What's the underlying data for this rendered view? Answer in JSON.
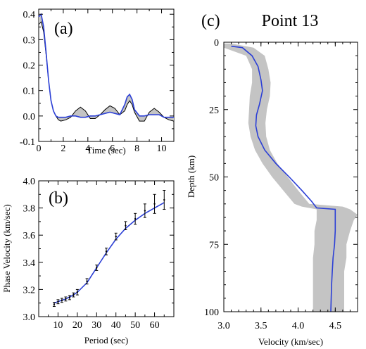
{
  "colors": {
    "model": "#2b3fd6",
    "band": "#c4c4c4",
    "axis": "#000000"
  },
  "chart_data": [
    {
      "id": "a",
      "type": "line",
      "panel_label": "(a)",
      "xlabel": "Time (sec)",
      "ylabel": "",
      "xlim": [
        0,
        11
      ],
      "ylim": [
        -0.1,
        0.42
      ],
      "xticks": [
        0,
        2,
        4,
        6,
        8,
        10
      ],
      "yticks": [
        -0.1,
        0.0,
        0.1,
        0.2,
        0.3,
        0.4
      ],
      "ytick_labels": [
        "-0.1",
        "0.0",
        "0.1",
        "0.2",
        "0.3",
        "0.4"
      ],
      "series": [
        {
          "role": "observed",
          "x": [
            0,
            0.2,
            0.4,
            0.6,
            0.8,
            1.0,
            1.2,
            1.4,
            1.6,
            1.8,
            2.2,
            2.6,
            3.0,
            3.4,
            3.8,
            4.2,
            4.6,
            5.0,
            5.4,
            5.8,
            6.2,
            6.6,
            7.0,
            7.2,
            7.4,
            7.6,
            7.8,
            8.2,
            8.6,
            9.0,
            9.4,
            9.8,
            10.2,
            10.6,
            11.0
          ],
          "y": [
            0.36,
            0.37,
            0.33,
            0.24,
            0.14,
            0.06,
            0.02,
            0.0,
            -0.015,
            -0.02,
            -0.015,
            -0.005,
            0.02,
            0.035,
            0.02,
            -0.01,
            -0.01,
            0.005,
            0.025,
            0.04,
            0.03,
            0.005,
            0.02,
            0.045,
            0.06,
            0.045,
            0.015,
            -0.02,
            -0.02,
            0.015,
            0.03,
            0.015,
            -0.005,
            -0.015,
            -0.02
          ]
        },
        {
          "role": "synthetic",
          "x": [
            0,
            0.2,
            0.4,
            0.6,
            0.8,
            1.0,
            1.2,
            1.4,
            1.6,
            1.8,
            2.2,
            2.6,
            3.0,
            3.4,
            3.8,
            4.2,
            4.6,
            5.0,
            5.4,
            5.8,
            6.2,
            6.6,
            7.0,
            7.2,
            7.4,
            7.6,
            7.8,
            8.2,
            8.6,
            9.0,
            9.4,
            9.8,
            10.2,
            10.6,
            11.0
          ],
          "y": [
            0.39,
            0.4,
            0.35,
            0.25,
            0.14,
            0.06,
            0.02,
            0.0,
            -0.005,
            -0.005,
            -0.005,
            0.0,
            0.0,
            -0.005,
            -0.005,
            0.0,
            0.0,
            0.005,
            0.01,
            0.015,
            0.01,
            0.005,
            0.045,
            0.075,
            0.085,
            0.065,
            0.025,
            0.0,
            0.0,
            0.005,
            0.005,
            0.005,
            -0.005,
            -0.005,
            -0.005
          ]
        }
      ]
    },
    {
      "id": "b",
      "type": "line",
      "panel_label": "(b)",
      "xlabel": "Period (sec)",
      "ylabel": "Phase Velocity (km/sec)",
      "xlim": [
        0,
        70
      ],
      "ylim": [
        3.0,
        4.0
      ],
      "xticks": [
        0,
        10,
        20,
        30,
        40,
        50,
        60,
        70
      ],
      "yticks": [
        3.0,
        3.2,
        3.4,
        3.6,
        3.8,
        4.0
      ],
      "ytick_labels": [
        "3.0",
        "3.2",
        "3.4",
        "3.6",
        "3.8",
        "4.0"
      ],
      "observed": {
        "x": [
          8,
          10,
          12,
          14,
          16,
          18,
          20,
          25,
          30,
          35,
          40,
          45,
          50,
          55,
          60,
          65
        ],
        "y": [
          3.09,
          3.11,
          3.12,
          3.13,
          3.14,
          3.16,
          3.18,
          3.26,
          3.36,
          3.48,
          3.59,
          3.67,
          3.72,
          3.78,
          3.83,
          3.86
        ],
        "err": [
          0.015,
          0.015,
          0.015,
          0.015,
          0.015,
          0.015,
          0.02,
          0.02,
          0.02,
          0.025,
          0.025,
          0.03,
          0.04,
          0.05,
          0.07,
          0.07
        ]
      },
      "model": {
        "x": [
          8,
          10,
          12,
          14,
          16,
          18,
          20,
          25,
          30,
          35,
          40,
          45,
          50,
          55,
          60,
          65
        ],
        "y": [
          3.1,
          3.11,
          3.12,
          3.13,
          3.145,
          3.16,
          3.18,
          3.25,
          3.36,
          3.47,
          3.57,
          3.65,
          3.71,
          3.76,
          3.8,
          3.84
        ]
      }
    },
    {
      "id": "c",
      "type": "line",
      "panel_label": "(c)",
      "title": "Point 13",
      "xlabel": "Velocity (km/sec)",
      "ylabel": "Depth (km)",
      "xlim": [
        3.0,
        4.8
      ],
      "ylim": [
        0,
        100
      ],
      "y_inverted": true,
      "xticks": [
        3.0,
        3.5,
        4.0,
        4.5
      ],
      "xtick_labels": [
        "3.0",
        "3.5",
        "4.0",
        "4.5"
      ],
      "yticks": [
        0,
        25,
        50,
        75,
        100
      ],
      "model": {
        "velocity": [
          3.1,
          3.25,
          3.38,
          3.46,
          3.5,
          3.52,
          3.48,
          3.44,
          3.43,
          3.46,
          3.55,
          3.7,
          3.88,
          4.05,
          4.18,
          4.25,
          4.5,
          4.5,
          4.5,
          4.49,
          4.47,
          4.46,
          4.45,
          4.44
        ],
        "depth": [
          1.5,
          2,
          5,
          9,
          14,
          18,
          23,
          27,
          31,
          35,
          40,
          45,
          50,
          55,
          59,
          61.5,
          62,
          65,
          70,
          75,
          80,
          85,
          90,
          100
        ]
      },
      "band": {
        "depth": [
          0.5,
          2,
          5,
          10,
          15,
          20,
          25,
          30,
          35,
          40,
          45,
          50,
          55,
          60,
          61,
          62,
          64,
          66,
          70,
          75,
          80,
          85,
          90,
          95,
          100
        ],
        "vmin": [
          3.0,
          3.0,
          3.3,
          3.38,
          3.38,
          3.35,
          3.34,
          3.33,
          3.36,
          3.42,
          3.52,
          3.65,
          3.8,
          3.95,
          4.05,
          4.25,
          4.25,
          4.25,
          4.22,
          4.22,
          4.2,
          4.2,
          4.2,
          4.2,
          4.2
        ],
        "vmax": [
          3.1,
          3.4,
          3.55,
          3.6,
          3.63,
          3.62,
          3.58,
          3.56,
          3.57,
          3.62,
          3.72,
          3.86,
          4.0,
          4.15,
          4.6,
          4.7,
          4.8,
          4.75,
          4.7,
          4.65,
          4.65,
          4.62,
          4.62,
          4.62,
          4.62
        ]
      }
    }
  ]
}
